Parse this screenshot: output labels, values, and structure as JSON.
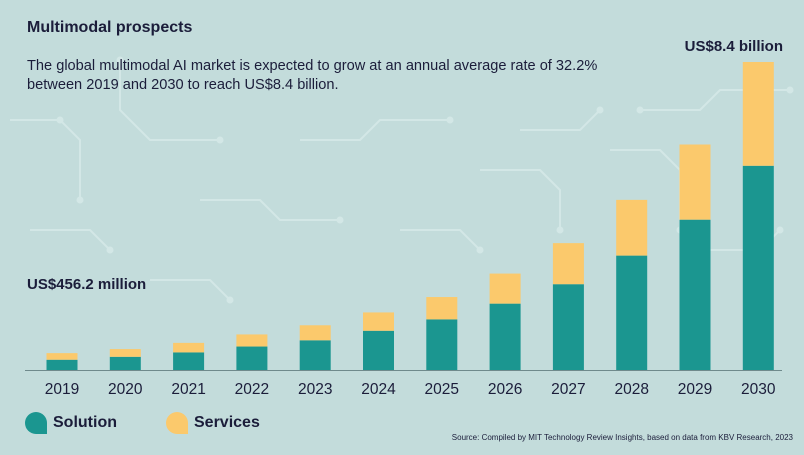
{
  "title": "Multimodal prospects",
  "subtitle": "The global multimodal AI market is expected to grow at an annual average rate of 32.2% between 2019 and 2030 to reach US$8.4 billion.",
  "callouts": {
    "start": "US$456.2 million",
    "end": "US$8.4 billion"
  },
  "legend": {
    "solution": "Solution",
    "services": "Services"
  },
  "source": "Source: Compiled by MIT Technology Review Insights, based on data from KBV Research, 2023",
  "colors": {
    "solution": "#1b9690",
    "services": "#fbc96c",
    "text": "#1b1d3a",
    "background": "#c3dcdb"
  },
  "chart_data": {
    "type": "bar",
    "stacked": true,
    "categories": [
      "2019",
      "2020",
      "2021",
      "2022",
      "2023",
      "2024",
      "2025",
      "2026",
      "2027",
      "2028",
      "2029",
      "2030"
    ],
    "series": [
      {
        "name": "Solution",
        "values": [
          0.28,
          0.36,
          0.48,
          0.64,
          0.81,
          1.07,
          1.38,
          1.81,
          2.34,
          3.12,
          4.1,
          5.57
        ]
      },
      {
        "name": "Services",
        "values": [
          0.18,
          0.21,
          0.26,
          0.33,
          0.41,
          0.5,
          0.61,
          0.82,
          1.12,
          1.52,
          2.05,
          2.83
        ]
      }
    ],
    "totals_labeled": {
      "2019": "US$456.2 million",
      "2030": "US$8.4 billion"
    },
    "ylim": [
      0,
      8.4
    ],
    "grid": false,
    "legend_position": "bottom-left"
  }
}
